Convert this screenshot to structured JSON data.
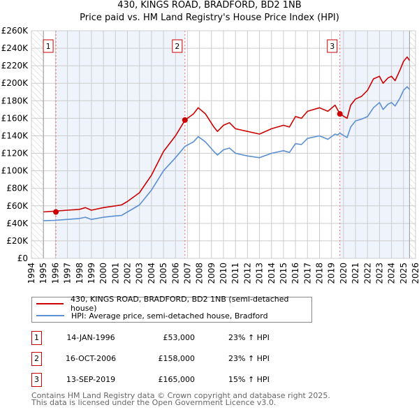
{
  "title": "430, KINGS ROAD, BRADFORD, BD2 1NB",
  "subtitle": "Price paid vs. HM Land Registry's House Price Index (HPI)",
  "colors": {
    "property": "#cc0000",
    "hpi": "#5b8fd4",
    "shade": "#eef3fc",
    "grid": "#cccccc"
  },
  "chart_data": {
    "type": "line",
    "title": "430, KINGS ROAD, BRADFORD, BD2 1NB",
    "xlim": [
      1994,
      2026
    ],
    "ylim": [
      0,
      260000
    ],
    "x_ticks": [
      1994,
      1995,
      1996,
      1997,
      1998,
      1999,
      2000,
      2001,
      2002,
      2003,
      2004,
      2005,
      2006,
      2007,
      2008,
      2009,
      2010,
      2011,
      2012,
      2013,
      2014,
      2015,
      2016,
      2017,
      2018,
      2019,
      2020,
      2021,
      2022,
      2023,
      2024,
      2025,
      2026
    ],
    "y_ticks": [
      0,
      20000,
      40000,
      60000,
      80000,
      100000,
      120000,
      140000,
      160000,
      180000,
      200000,
      220000,
      240000,
      260000
    ],
    "y_tick_labels": [
      "£0",
      "£20K",
      "£40K",
      "£60K",
      "£80K",
      "£100K",
      "£120K",
      "£140K",
      "£160K",
      "£180K",
      "£200K",
      "£220K",
      "£240K",
      "£260K"
    ],
    "grid": true,
    "data_range": [
      1995,
      2025.5
    ],
    "shaded_periods": [
      [
        1996.04,
        2006.79
      ],
      [
        2019.7,
        2025.5
      ]
    ],
    "series": [
      {
        "name": "430, KINGS ROAD, BRADFORD, BD2 1NB (semi-detached house)",
        "x": [
          1995,
          1996,
          1997,
          1998,
          1998.5,
          1999,
          2000,
          2001,
          2001.5,
          2002,
          2003,
          2004,
          2005,
          2006,
          2006.8,
          2007.5,
          2007.9,
          2008.5,
          2009.2,
          2009.5,
          2010,
          2010.5,
          2011,
          2012,
          2013,
          2014,
          2015,
          2015.5,
          2016,
          2016.5,
          2017,
          2018,
          2018.7,
          2019.3,
          2019.5,
          2019.7,
          2020.3,
          2020.6,
          2021,
          2021.5,
          2022,
          2022.5,
          2023,
          2023.3,
          2023.7,
          2024,
          2024.3,
          2024.7,
          2025,
          2025.3,
          2025.5
        ],
        "y": [
          53000,
          54000,
          55000,
          56000,
          58000,
          55000,
          58000,
          60000,
          61000,
          65000,
          75000,
          95000,
          122000,
          140000,
          158000,
          165000,
          172000,
          165000,
          150000,
          145000,
          152000,
          155000,
          148000,
          145000,
          142000,
          148000,
          152000,
          150000,
          162000,
          160000,
          168000,
          172000,
          168000,
          175000,
          170000,
          165000,
          160000,
          175000,
          182000,
          185000,
          192000,
          205000,
          208000,
          200000,
          206000,
          208000,
          203000,
          215000,
          225000,
          230000,
          226000
        ]
      },
      {
        "name": "HPI: Average price, semi-detached house, Bradford",
        "x": [
          1995,
          1996,
          1997,
          1998,
          1998.5,
          1999,
          2000,
          2001,
          2001.5,
          2002,
          2003,
          2004,
          2005,
          2006,
          2006.8,
          2007.5,
          2007.9,
          2008.5,
          2009.2,
          2009.5,
          2010,
          2010.5,
          2011,
          2012,
          2013,
          2014,
          2015,
          2015.5,
          2016,
          2016.5,
          2017,
          2018,
          2018.7,
          2019.3,
          2019.5,
          2019.7,
          2020.3,
          2020.6,
          2021,
          2021.5,
          2022,
          2022.5,
          2023,
          2023.3,
          2023.7,
          2024,
          2024.3,
          2024.7,
          2025,
          2025.3,
          2025.5
        ],
        "y": [
          43000,
          43500,
          44500,
          45500,
          47000,
          44500,
          47000,
          48500,
          49000,
          53000,
          61000,
          78000,
          100000,
          115000,
          128000,
          133000,
          139000,
          133000,
          122000,
          118000,
          124000,
          126000,
          120000,
          117000,
          115000,
          120000,
          123000,
          121000,
          131000,
          130000,
          137000,
          140000,
          136000,
          142000,
          141000,
          143000,
          138000,
          150000,
          157000,
          159000,
          162000,
          172000,
          178000,
          170000,
          176000,
          178000,
          174000,
          183000,
          192000,
          196000,
          193000
        ]
      }
    ],
    "annotations": [
      {
        "label": "1",
        "x": 1996.04,
        "y": 53000
      },
      {
        "label": "2",
        "x": 2006.79,
        "y": 158000
      },
      {
        "label": "3",
        "x": 2019.7,
        "y": 165000
      }
    ],
    "legend_position": "below"
  },
  "legend": {
    "property": "430, KINGS ROAD, BRADFORD, BD2 1NB (semi-detached house)",
    "hpi": "HPI: Average price, semi-detached house, Bradford"
  },
  "sales": [
    {
      "num": "1",
      "date": "14-JAN-1996",
      "price": "£53,000",
      "hpi": "23% ↑ HPI"
    },
    {
      "num": "2",
      "date": "16-OCT-2006",
      "price": "£158,000",
      "hpi": "23% ↑ HPI"
    },
    {
      "num": "3",
      "date": "13-SEP-2019",
      "price": "£165,000",
      "hpi": "15% ↑ HPI"
    }
  ],
  "footer": {
    "line1": "Contains HM Land Registry data © Crown copyright and database right 2025.",
    "line2": "This data is licensed under the Open Government Licence v3.0."
  }
}
